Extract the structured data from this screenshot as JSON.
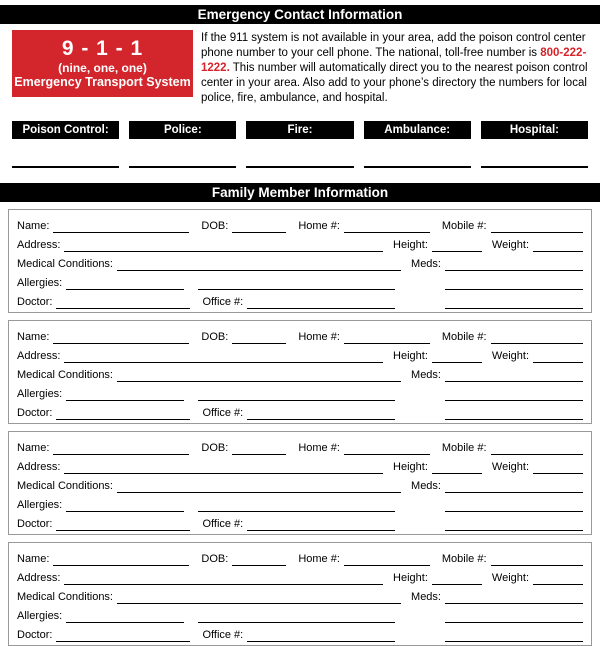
{
  "header": {
    "title": "Emergency Contact Information"
  },
  "emergency_911": {
    "number": "9 - 1 - 1",
    "phonetic": "(nine, one, one)",
    "caption": "Emergency Transport System",
    "bg_color": "#d2262c"
  },
  "intro": {
    "text_before": "If the 911 system is not available in your area, add the poison control center phone number to your cell phone. The national, toll-free number is ",
    "phone": "800-222-1222.",
    "text_after": " This number will automatically direct you to the nearest poison control center in your area. Also add to your phone’s directory the numbers for local police, fire, ambulance, and hospital.",
    "phone_color": "#d8232a"
  },
  "contacts": {
    "labels": [
      "Poison Control:",
      "Police:",
      "Fire:",
      "Ambulance:",
      "Hospital:"
    ]
  },
  "family": {
    "section_title": "Family Member Information",
    "member_count": 4,
    "fields": {
      "name": "Name:",
      "dob": "DOB:",
      "home": "Home #:",
      "mobile": "Mobile #:",
      "address": "Address:",
      "height": "Height:",
      "weight": "Weight:",
      "medical_conditions": "Medical Conditions:",
      "meds": "Meds:",
      "allergies": "Allergies:",
      "doctor": "Doctor:",
      "office": "Office #:"
    }
  }
}
